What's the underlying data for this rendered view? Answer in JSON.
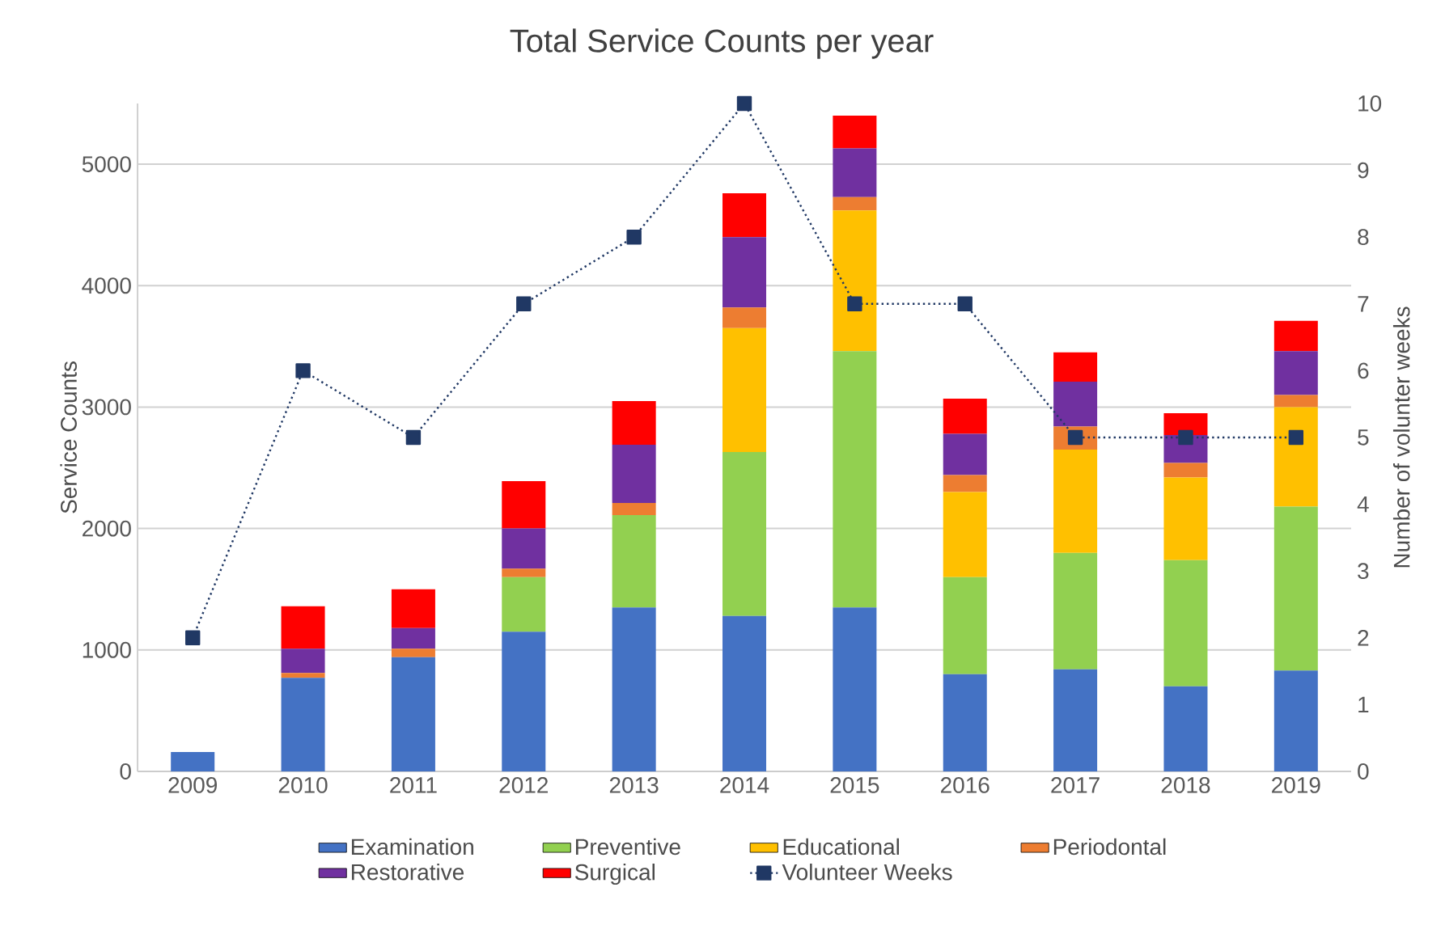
{
  "chart_data": {
    "type": "bar",
    "title": "Total Service Counts per year",
    "xlabel": null,
    "ylabel": "Service Counts",
    "y2label": "Number of volunter weeks",
    "categories": [
      "2009",
      "2010",
      "2011",
      "2012",
      "2013",
      "2014",
      "2015",
      "2016",
      "2017",
      "2018",
      "2019"
    ],
    "stacked": true,
    "grid": "y",
    "legend": "bottom",
    "ylim": [
      0,
      5500
    ],
    "yticks": [
      0,
      1000,
      2000,
      3000,
      4000,
      5000
    ],
    "y2lim": [
      0,
      10
    ],
    "y2ticks": [
      0,
      1,
      2,
      3,
      4,
      5,
      6,
      7,
      8,
      9,
      10
    ],
    "series": [
      {
        "name": "Examination",
        "color": "#4472c4",
        "values": [
          160,
          770,
          940,
          1150,
          1350,
          1280,
          1350,
          800,
          840,
          700,
          830
        ]
      },
      {
        "name": "Preventive",
        "color": "#92d050",
        "values": [
          0,
          0,
          0,
          450,
          760,
          1350,
          2110,
          800,
          960,
          1040,
          1350
        ]
      },
      {
        "name": "Educational",
        "color": "#ffc000",
        "values": [
          0,
          0,
          0,
          0,
          0,
          1020,
          1160,
          700,
          850,
          680,
          820
        ]
      },
      {
        "name": "Periodontal",
        "color": "#ed7d31",
        "values": [
          0,
          40,
          70,
          70,
          100,
          170,
          110,
          140,
          190,
          120,
          100
        ]
      },
      {
        "name": "Restorative",
        "color": "#7030a0",
        "values": [
          0,
          200,
          170,
          330,
          480,
          580,
          400,
          340,
          370,
          230,
          360
        ]
      },
      {
        "name": "Surgical",
        "color": "#ff0000",
        "values": [
          0,
          350,
          320,
          390,
          360,
          360,
          270,
          290,
          240,
          180,
          250
        ]
      },
      {
        "name": "Volunteer Weeks",
        "type": "line",
        "axis": "y2",
        "color": "#203864",
        "marker": "square",
        "line_style": "dotted",
        "values": [
          2,
          6,
          5,
          7,
          8,
          10,
          7,
          7,
          5,
          5,
          5
        ]
      }
    ]
  }
}
